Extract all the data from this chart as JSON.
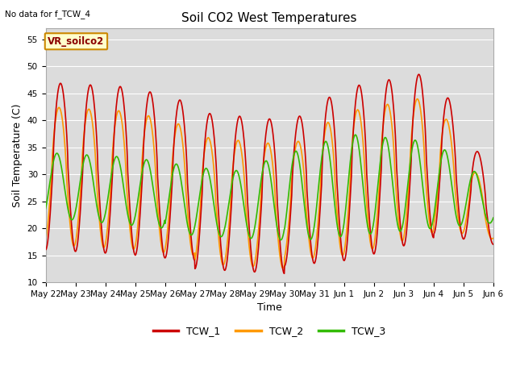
{
  "title": "Soil CO2 West Temperatures",
  "xlabel": "Time",
  "ylabel": "Soil Temperature (C)",
  "ylim": [
    10,
    57
  ],
  "yticks": [
    10,
    15,
    20,
    25,
    30,
    35,
    40,
    45,
    50,
    55
  ],
  "background_color": "#dcdcdc",
  "fig_background": "#ffffff",
  "note": "No data for f_TCW_4",
  "annotation": "VR_soilco2",
  "legend_entries": [
    "TCW_1",
    "TCW_2",
    "TCW_3"
  ],
  "line_colors": [
    "#cc0000",
    "#ff9900",
    "#33bb00"
  ],
  "line_width": 1.2,
  "xtick_labels": [
    "May 22",
    "May 23",
    "May 24",
    "May 25",
    "May 26",
    "May 27",
    "May 28",
    "May 29",
    "May 30",
    "May 31",
    "Jun 1",
    "Jun 2",
    "Jun 3",
    "Jun 4",
    "Jun 5",
    "Jun 6"
  ],
  "num_points": 1440
}
